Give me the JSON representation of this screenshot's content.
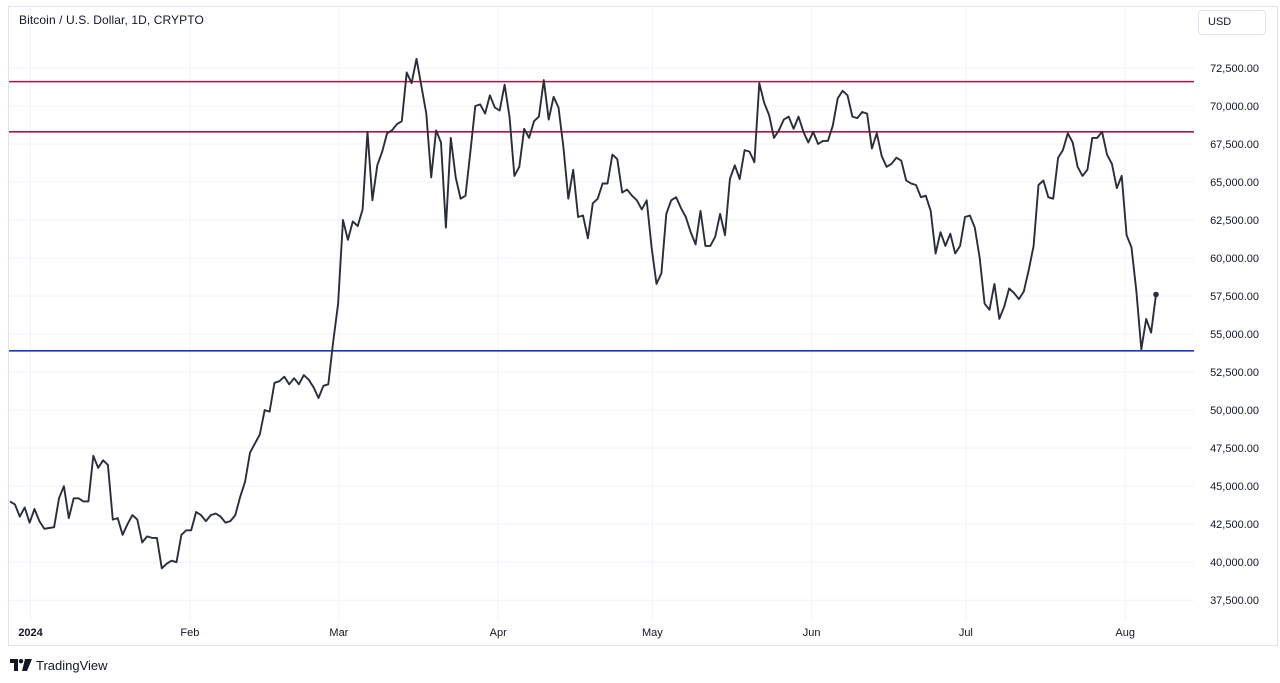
{
  "header": {
    "symbol_title": "Bitcoin / U.S. Dollar, 1D, CRYPTO",
    "currency_button": "USD"
  },
  "branding": {
    "name": "TradingView"
  },
  "chart_data": {
    "type": "line",
    "series": [
      {
        "values": [
          44000,
          43800,
          43000,
          43600,
          42600,
          43500,
          42700,
          42200,
          42250,
          42300,
          44200,
          45000,
          42900,
          44200,
          44200,
          44000,
          44000,
          47000,
          46200,
          46700,
          46400,
          42800,
          42900,
          41800,
          42500,
          43100,
          42800,
          41300,
          41700,
          41600,
          41600,
          39600,
          39900,
          40100,
          40000,
          41800,
          42100,
          42100,
          43300,
          43100,
          42700,
          43100,
          43200,
          43000,
          42600,
          42700,
          43100,
          44300,
          45300,
          47200,
          47800,
          48400,
          50000,
          49900,
          51800,
          51900,
          52200,
          51700,
          52100,
          51700,
          52300,
          52000,
          51500,
          50800,
          51600,
          51700,
          54500,
          57000,
          62500,
          61200,
          62400,
          62100,
          63200,
          68300,
          63800,
          66100,
          67000,
          68200,
          68400,
          68800,
          69000,
          72200,
          71500,
          73100,
          71300,
          69500,
          65300,
          68400,
          67600,
          62000,
          67900,
          65300,
          63900,
          64100,
          67000,
          70000,
          70100,
          69500,
          70700,
          69900,
          69700,
          71400,
          69300,
          65400,
          66000,
          68500,
          67900,
          69000,
          69300,
          71700,
          69100,
          70600,
          69900,
          67300,
          63900,
          65800,
          62700,
          62800,
          61300,
          63600,
          63900,
          64900,
          64900,
          66800,
          66500,
          64300,
          64500,
          64100,
          63800,
          63200,
          63800,
          60700,
          58300,
          59000,
          62900,
          63800,
          64000,
          63300,
          62700,
          61700,
          60900,
          63100,
          60800,
          60800,
          61400,
          62900,
          61500,
          65200,
          66100,
          65200,
          67100,
          67000,
          66300,
          71500,
          70200,
          69400,
          67900,
          68400,
          69100,
          69300,
          68500,
          69300,
          68300,
          67600,
          68300,
          67500,
          67700,
          67700,
          68700,
          70500,
          71000,
          70700,
          69300,
          69200,
          69600,
          69500,
          67200,
          68200,
          66700,
          66000,
          66200,
          66600,
          66400,
          65100,
          64900,
          64800,
          64000,
          64100,
          63100,
          60300,
          61700,
          60800,
          61600,
          60300,
          60800,
          62700,
          62800,
          62000,
          60000,
          57000,
          56600,
          58300,
          56000,
          56800,
          58000,
          57700,
          57300,
          57800,
          59200,
          60800,
          64800,
          65100,
          64000,
          63900,
          66600,
          67100,
          68200,
          67600,
          66000,
          65400,
          65800,
          67900,
          67900,
          68300,
          66800,
          66200,
          64600,
          65400,
          61500,
          60700,
          57800,
          54000,
          56000,
          55100,
          57600
        ]
      }
    ],
    "x_range": [
      "2023-12-28",
      "2024-08-07"
    ],
    "x_ticks": [
      "2024",
      "Feb",
      "Mar",
      "Apr",
      "May",
      "Jun",
      "Jul",
      "Aug"
    ],
    "y_ticks": [
      "37,500.00",
      "40,000.00",
      "42,500.00",
      "45,000.00",
      "47,500.00",
      "50,000.00",
      "52,500.00",
      "55,000.00",
      "57,500.00",
      "60,000.00",
      "62,500.00",
      "65,000.00",
      "67,500.00",
      "70,000.00",
      "72,500.00"
    ],
    "ylim": [
      36200,
      74600
    ],
    "horizontal_lines": [
      {
        "value": 71600,
        "color": "#b0134a"
      },
      {
        "value": 68300,
        "color": "#b0134a"
      },
      {
        "value": 53900,
        "color": "#1a36c4"
      }
    ],
    "line_color": "#2a2e39",
    "grid": true,
    "y_axis_side": "right"
  }
}
